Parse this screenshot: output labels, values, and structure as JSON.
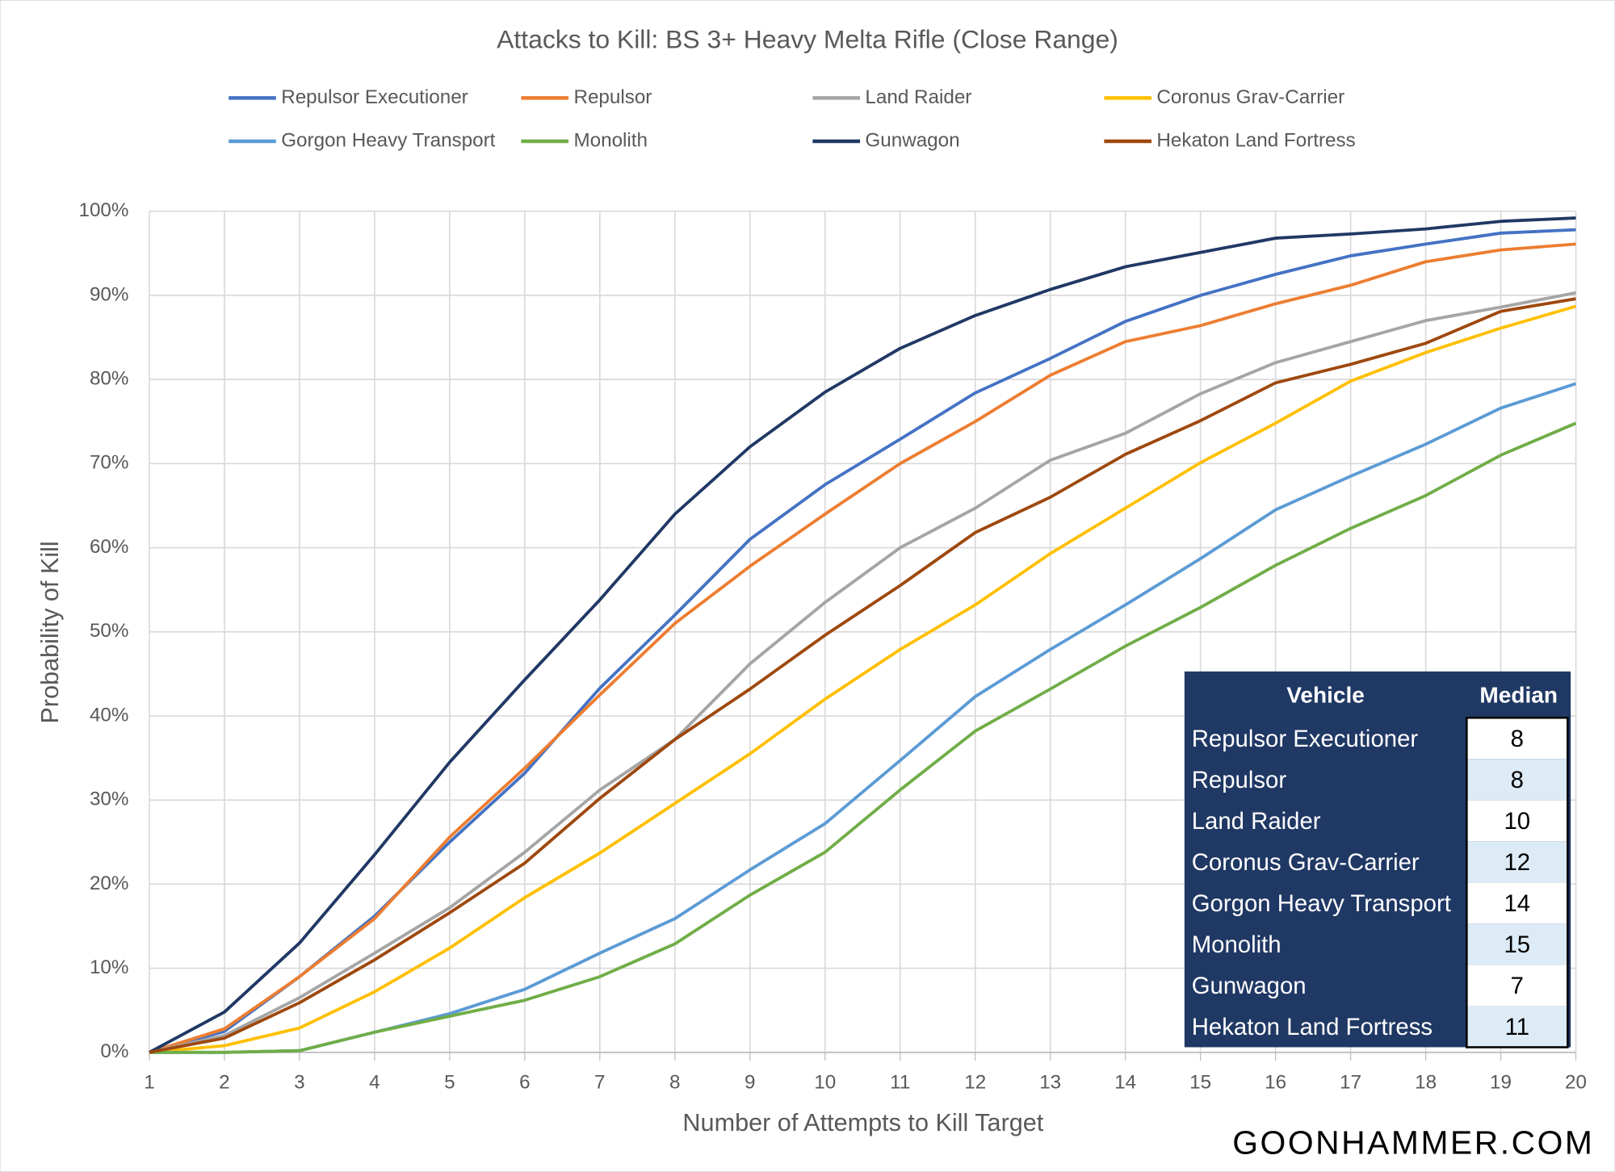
{
  "chart_data": {
    "type": "line",
    "title": "Attacks to Kill: BS 3+ Heavy Melta Rifle (Close Range)",
    "x_label": "Number of Attempts to Kill Target",
    "y_label": "Probability of Kill",
    "x": [
      1,
      2,
      3,
      4,
      5,
      6,
      7,
      8,
      9,
      10,
      11,
      12,
      13,
      14,
      15,
      16,
      17,
      18,
      19,
      20
    ],
    "xlim": [
      1,
      20
    ],
    "xticks": [
      1,
      2,
      3,
      4,
      5,
      6,
      7,
      8,
      9,
      10,
      11,
      12,
      13,
      14,
      15,
      16,
      17,
      18,
      19,
      20
    ],
    "ylim": [
      0,
      100
    ],
    "yticks": [
      {
        "value": 0,
        "label": "0%"
      },
      {
        "value": 10,
        "label": "10%"
      },
      {
        "value": 20,
        "label": "20%"
      },
      {
        "value": 30,
        "label": "30%"
      },
      {
        "value": 40,
        "label": "40%"
      },
      {
        "value": 50,
        "label": "50%"
      },
      {
        "value": 60,
        "label": "60%"
      },
      {
        "value": 70,
        "label": "70%"
      },
      {
        "value": 80,
        "label": "80%"
      },
      {
        "value": 90,
        "label": "90%"
      },
      {
        "value": 100,
        "label": "100%"
      }
    ],
    "grid": true,
    "legend": "top",
    "series": [
      {
        "name": "Repulsor Executioner",
        "color": "#4472c4",
        "values": [
          0,
          2.5,
          9,
          16.2,
          25,
          33.2,
          43.3,
          52,
          61,
          67.5,
          72.9,
          78.4,
          82.5,
          86.9,
          90,
          92.5,
          94.7,
          96.1,
          97.4,
          97.8
        ]
      },
      {
        "name": "Repulsor",
        "color": "#ed7d31",
        "values": [
          0,
          2.8,
          9,
          15.9,
          25.6,
          33.8,
          42.5,
          51,
          57.8,
          64,
          70,
          75,
          80.5,
          84.5,
          86.4,
          89,
          91.2,
          94,
          95.4,
          96.1
        ]
      },
      {
        "name": "Land Raider",
        "color": "#a5a5a5",
        "values": [
          0,
          2,
          6.5,
          11.8,
          17.2,
          23.8,
          31.2,
          37.2,
          46.2,
          53.5,
          60,
          64.7,
          70.4,
          73.6,
          78.3,
          82,
          84.5,
          87,
          88.6,
          90.3
        ]
      },
      {
        "name": "Coronus Grav-Carrier",
        "color": "#ffc000",
        "values": [
          0,
          0.8,
          2.9,
          7.2,
          12.4,
          18.4,
          23.7,
          29.6,
          35.5,
          42,
          47.9,
          53.2,
          59.3,
          64.7,
          70.1,
          74.8,
          79.8,
          83.2,
          86.1,
          88.7
        ]
      },
      {
        "name": "Gorgon Heavy Transport",
        "color": "#5b9bd5",
        "values": [
          0,
          0,
          0.2,
          2.4,
          4.6,
          7.5,
          11.8,
          15.9,
          21.7,
          27.2,
          34.7,
          42.3,
          47.9,
          53.2,
          58.7,
          64.5,
          68.5,
          72.3,
          76.6,
          79.5
        ]
      },
      {
        "name": "Monolith",
        "color": "#70ad47",
        "values": [
          0,
          0,
          0.2,
          2.4,
          4.3,
          6.2,
          9,
          12.9,
          18.7,
          23.8,
          31.2,
          38.2,
          43.2,
          48.3,
          52.9,
          57.9,
          62.3,
          66.2,
          71,
          74.8
        ]
      },
      {
        "name": "Gunwagon",
        "color": "#203864",
        "values": [
          0,
          4.8,
          13,
          23.5,
          34.5,
          44.3,
          53.8,
          64,
          72,
          78.5,
          83.7,
          87.6,
          90.7,
          93.4,
          95.1,
          96.8,
          97.3,
          97.9,
          98.8,
          99.2
        ]
      },
      {
        "name": "Hekaton Land Fortress",
        "color": "#9e480e",
        "values": [
          0,
          1.7,
          5.9,
          11,
          16.6,
          22.5,
          30.2,
          37.2,
          43.2,
          49.6,
          55.5,
          61.8,
          66,
          71.1,
          75.1,
          79.6,
          81.8,
          84.3,
          88.1,
          89.6
        ]
      }
    ],
    "table": {
      "header": [
        "Vehicle",
        "Median"
      ],
      "rows": [
        [
          "Repulsor Executioner",
          "8"
        ],
        [
          "Repulsor",
          "8"
        ],
        [
          "Land Raider",
          "10"
        ],
        [
          "Coronus Grav-Carrier",
          "12"
        ],
        [
          "Gorgon Heavy Transport",
          "14"
        ],
        [
          "Monolith",
          "15"
        ],
        [
          "Gunwagon",
          "7"
        ],
        [
          "Hekaton Land Fortress",
          "11"
        ]
      ]
    },
    "watermark": "GOONHAMMER.COM"
  }
}
